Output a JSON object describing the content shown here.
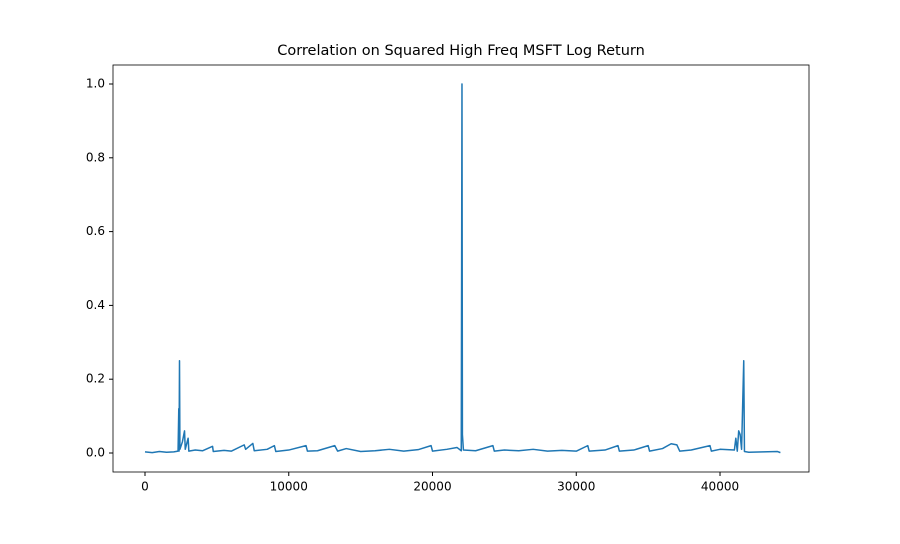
{
  "chart_data": {
    "type": "line",
    "title": "Correlation on Squared High Freq MSFT Log Return",
    "x": [
      0,
      500,
      1000,
      1500,
      2000,
      2300,
      2350,
      2370,
      2400,
      2430,
      2600,
      2750,
      2800,
      3000,
      3050,
      3500,
      4000,
      4700,
      4750,
      5500,
      6000,
      6900,
      7000,
      7500,
      7600,
      8500,
      9000,
      9100,
      10000,
      11200,
      11300,
      12000,
      13200,
      13400,
      14000,
      15000,
      16000,
      17000,
      18000,
      19000,
      19900,
      20000,
      21000,
      21700,
      22000,
      22050,
      22080,
      22150,
      23000,
      24200,
      24300,
      25000,
      26000,
      27000,
      28000,
      29000,
      30000,
      30800,
      30900,
      32000,
      32900,
      33000,
      34000,
      35000,
      35100,
      36000,
      36600,
      37000,
      37200,
      38000,
      39300,
      39400,
      40000,
      41000,
      41100,
      41200,
      41300,
      41400,
      41500,
      41650,
      41700,
      42000,
      43000,
      44000,
      44200
    ],
    "values": [
      0.003,
      0.001,
      0.004,
      0.002,
      0.003,
      0.005,
      0.12,
      0.005,
      0.25,
      0.01,
      0.03,
      0.06,
      0.01,
      0.04,
      0.005,
      0.008,
      0.006,
      0.018,
      0.004,
      0.007,
      0.005,
      0.022,
      0.01,
      0.026,
      0.006,
      0.01,
      0.02,
      0.004,
      0.008,
      0.02,
      0.005,
      0.006,
      0.02,
      0.005,
      0.012,
      0.004,
      0.006,
      0.01,
      0.005,
      0.009,
      0.02,
      0.005,
      0.01,
      0.015,
      0.006,
      1.0,
      0.05,
      0.008,
      0.006,
      0.02,
      0.005,
      0.008,
      0.006,
      0.01,
      0.005,
      0.007,
      0.005,
      0.02,
      0.005,
      0.008,
      0.02,
      0.005,
      0.008,
      0.02,
      0.005,
      0.012,
      0.025,
      0.022,
      0.005,
      0.008,
      0.02,
      0.005,
      0.01,
      0.008,
      0.04,
      0.005,
      0.06,
      0.05,
      0.01,
      0.25,
      0.004,
      0.002,
      0.003,
      0.004,
      0.001
    ],
    "color": "#1f77b4",
    "xlim": [
      -2226,
      46190
    ],
    "ylim": [
      -0.0515,
      1.0515
    ],
    "xticks": [
      0,
      10000,
      20000,
      30000,
      40000
    ],
    "yticks": [
      {
        "value": 0,
        "label": "0.0"
      },
      0.2,
      0.4,
      0.6,
      0.8,
      {
        "value": 1,
        "label": "1.0"
      }
    ]
  }
}
